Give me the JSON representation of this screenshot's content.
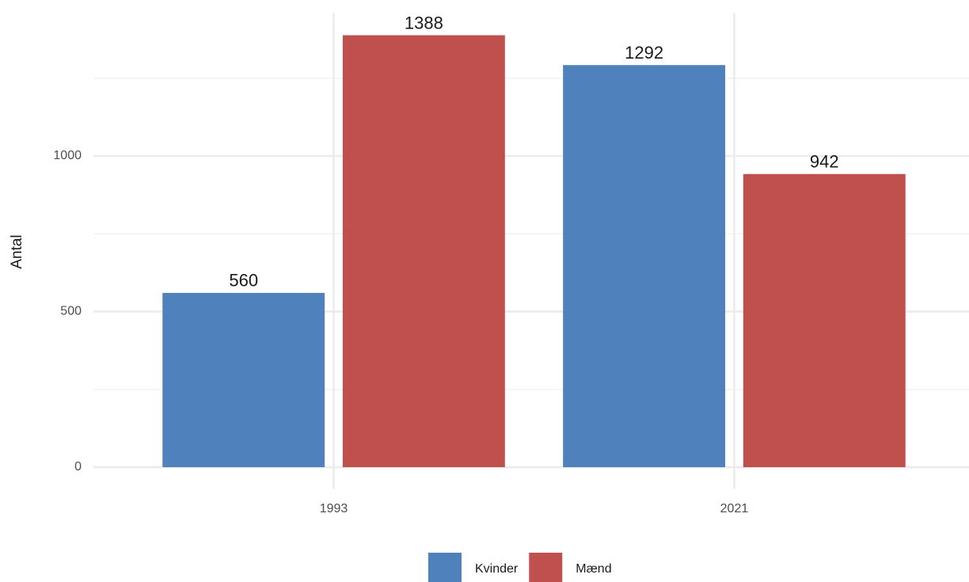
{
  "chart_data": {
    "type": "bar",
    "categories": [
      "1993",
      "2021"
    ],
    "y_label": "Antal",
    "series": [
      {
        "name": "Kvinder",
        "color": "#4f81bd",
        "values": [
          560,
          1292
        ]
      },
      {
        "name": "Mænd",
        "color": "#c0504d",
        "values": [
          1388,
          942
        ]
      }
    ],
    "ylim": [
      -70,
      1460
    ],
    "yticks": [
      0,
      500,
      1000
    ],
    "y_minor_ticks": [
      250,
      750,
      1250
    ],
    "grid": true,
    "legend": "bottom"
  }
}
